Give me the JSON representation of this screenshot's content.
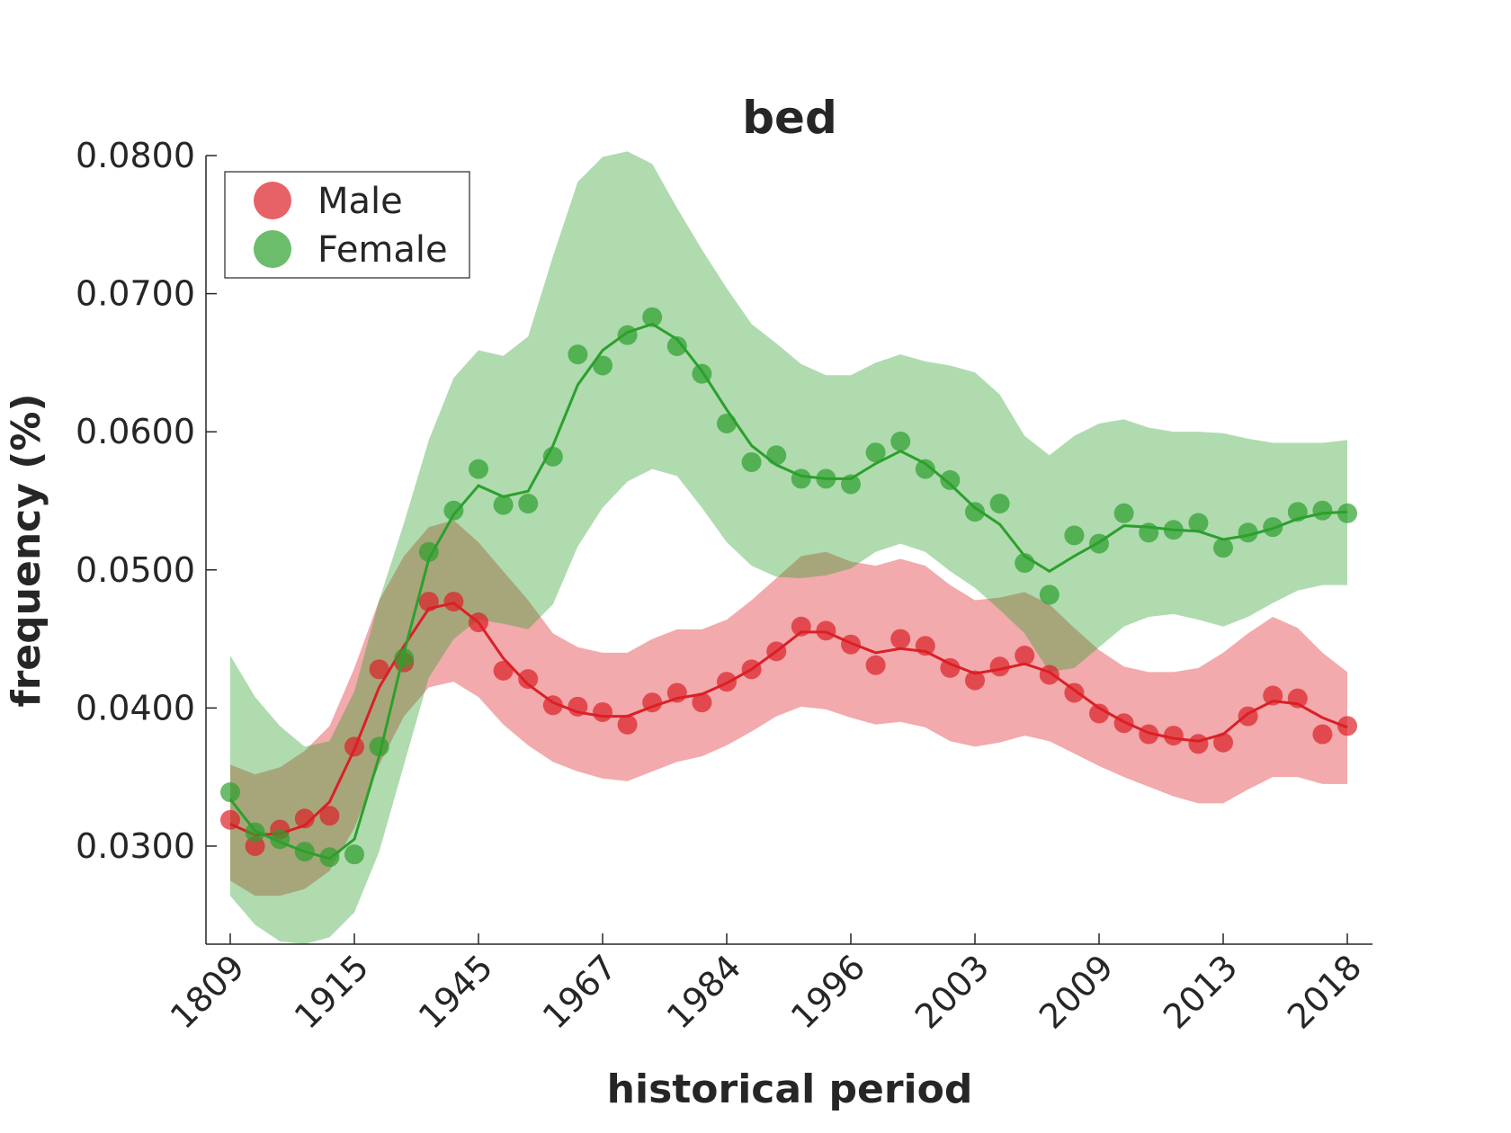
{
  "chart_data": {
    "type": "line",
    "title": "bed",
    "xlabel": "historical period",
    "ylabel": "frequency (%)",
    "categories": [
      "1809",
      null,
      null,
      null,
      null,
      "1915",
      null,
      null,
      null,
      null,
      "1945",
      null,
      null,
      null,
      null,
      "1967",
      null,
      null,
      null,
      null,
      "1984",
      null,
      null,
      null,
      null,
      "1996",
      null,
      null,
      null,
      null,
      "2003",
      null,
      null,
      null,
      null,
      "2009",
      null,
      null,
      null,
      null,
      "2013",
      null,
      null,
      null,
      null,
      "2018"
    ],
    "ylim": [
      0.0229,
      0.08
    ],
    "yticks": [
      {
        "value": 0.03,
        "label": "0.0300"
      },
      {
        "value": 0.04,
        "label": "0.0400"
      },
      {
        "value": 0.05,
        "label": "0.0500"
      },
      {
        "value": 0.06,
        "label": "0.0600"
      },
      {
        "value": 0.07,
        "label": "0.0700"
      },
      {
        "value": 0.08,
        "label": "0.0800"
      }
    ],
    "legend": "upper left",
    "series": [
      {
        "name": "Male",
        "color": "#dc1f26",
        "values": [
          0.0319,
          0.03,
          0.0312,
          0.032,
          0.0322,
          0.0372,
          0.0428,
          0.0433,
          0.0477,
          0.0477,
          0.0462,
          0.0427,
          0.0421,
          0.0402,
          0.0401,
          0.0397,
          0.0388,
          0.0404,
          0.0411,
          0.0404,
          0.0419,
          0.0428,
          0.0441,
          0.0459,
          0.0456,
          0.0446,
          0.0431,
          0.045,
          0.0445,
          0.0429,
          0.042,
          0.043,
          0.0438,
          0.0424,
          0.0411,
          0.0396,
          0.0389,
          0.0381,
          0.038,
          0.0374,
          0.0375,
          0.0394,
          0.0409,
          0.0407,
          0.0381,
          0.0387
        ],
        "smooth": [
          0.0316,
          0.0308,
          0.0309,
          0.0315,
          0.0332,
          0.037,
          0.0415,
          0.0445,
          0.0472,
          0.0476,
          0.0462,
          0.0436,
          0.0417,
          0.0404,
          0.0397,
          0.0394,
          0.0394,
          0.0401,
          0.0407,
          0.041,
          0.0418,
          0.0428,
          0.0441,
          0.0455,
          0.0455,
          0.0447,
          0.044,
          0.0443,
          0.0441,
          0.0432,
          0.0425,
          0.0428,
          0.0432,
          0.0426,
          0.0413,
          0.04,
          0.039,
          0.0382,
          0.0378,
          0.0376,
          0.0381,
          0.0396,
          0.0405,
          0.0403,
          0.0393,
          0.0386
        ],
        "upper": [
          0.0359,
          0.0352,
          0.0357,
          0.0369,
          0.0387,
          0.0429,
          0.0478,
          0.051,
          0.0531,
          0.0536,
          0.052,
          0.0499,
          0.0478,
          0.0454,
          0.0444,
          0.044,
          0.044,
          0.045,
          0.0457,
          0.0457,
          0.0464,
          0.0478,
          0.0494,
          0.051,
          0.0513,
          0.0506,
          0.0503,
          0.0508,
          0.0503,
          0.0489,
          0.0478,
          0.048,
          0.0484,
          0.0475,
          0.0458,
          0.0442,
          0.043,
          0.0426,
          0.0426,
          0.0429,
          0.044,
          0.0454,
          0.0466,
          0.0458,
          0.044,
          0.0426
        ],
        "lower": [
          0.0275,
          0.0264,
          0.0264,
          0.0269,
          0.0282,
          0.0313,
          0.0359,
          0.0394,
          0.0415,
          0.0419,
          0.0408,
          0.0388,
          0.0373,
          0.0361,
          0.0354,
          0.0349,
          0.0347,
          0.0354,
          0.0361,
          0.0365,
          0.0373,
          0.0383,
          0.0394,
          0.0401,
          0.0399,
          0.0393,
          0.0388,
          0.039,
          0.0386,
          0.0376,
          0.0372,
          0.0375,
          0.038,
          0.0376,
          0.0367,
          0.0358,
          0.035,
          0.0343,
          0.0336,
          0.0331,
          0.0331,
          0.0341,
          0.035,
          0.035,
          0.0345,
          0.0345
        ]
      },
      {
        "name": "Female",
        "color": "#2ca02c",
        "values": [
          0.0339,
          0.031,
          0.0305,
          0.0296,
          0.0292,
          0.0294,
          0.0372,
          0.0436,
          0.0513,
          0.0543,
          0.0573,
          0.0547,
          0.0548,
          0.0582,
          0.0656,
          0.0648,
          0.067,
          0.0683,
          0.0662,
          0.0642,
          0.0606,
          0.0578,
          0.0583,
          0.0566,
          0.0566,
          0.0562,
          0.0585,
          0.0593,
          0.0573,
          0.0565,
          0.0542,
          0.0548,
          0.0505,
          0.0482,
          0.0525,
          0.0519,
          0.0541,
          0.0527,
          0.0529,
          0.0534,
          0.0516,
          0.0527,
          0.0531,
          0.0542,
          0.0543,
          0.0541
        ],
        "smooth": [
          0.0334,
          0.0311,
          0.0303,
          0.0296,
          0.0291,
          0.0305,
          0.0365,
          0.044,
          0.0508,
          0.054,
          0.0561,
          0.0553,
          0.0557,
          0.059,
          0.0634,
          0.0659,
          0.0672,
          0.0678,
          0.0667,
          0.0644,
          0.0616,
          0.059,
          0.0576,
          0.0568,
          0.0566,
          0.0566,
          0.0577,
          0.0586,
          0.0577,
          0.0562,
          0.0545,
          0.0533,
          0.051,
          0.0499,
          0.051,
          0.052,
          0.0532,
          0.0531,
          0.0529,
          0.0528,
          0.0522,
          0.0525,
          0.053,
          0.0537,
          0.0541,
          0.0542
        ],
        "upper": [
          0.0438,
          0.0408,
          0.0387,
          0.0372,
          0.0376,
          0.0412,
          0.0478,
          0.0534,
          0.0594,
          0.0639,
          0.0659,
          0.0655,
          0.0669,
          0.0727,
          0.0781,
          0.0799,
          0.0803,
          0.0794,
          0.0762,
          0.0732,
          0.0704,
          0.0678,
          0.0664,
          0.0649,
          0.0641,
          0.0641,
          0.065,
          0.0656,
          0.0651,
          0.0648,
          0.0643,
          0.0627,
          0.0597,
          0.0583,
          0.0597,
          0.0606,
          0.0609,
          0.0603,
          0.06,
          0.06,
          0.0599,
          0.0595,
          0.0592,
          0.0592,
          0.0592,
          0.0594
        ],
        "lower": [
          0.0264,
          0.0243,
          0.0231,
          0.0229,
          0.0234,
          0.0252,
          0.0296,
          0.0359,
          0.0422,
          0.045,
          0.0464,
          0.0461,
          0.0457,
          0.0475,
          0.0517,
          0.0545,
          0.0564,
          0.0573,
          0.0568,
          0.0545,
          0.052,
          0.0503,
          0.0495,
          0.0494,
          0.0496,
          0.0501,
          0.0513,
          0.0519,
          0.0513,
          0.0499,
          0.0487,
          0.0471,
          0.0454,
          0.0426,
          0.0429,
          0.0444,
          0.0459,
          0.0466,
          0.0468,
          0.0464,
          0.0459,
          0.0466,
          0.0476,
          0.0485,
          0.0489,
          0.0489
        ]
      }
    ]
  }
}
